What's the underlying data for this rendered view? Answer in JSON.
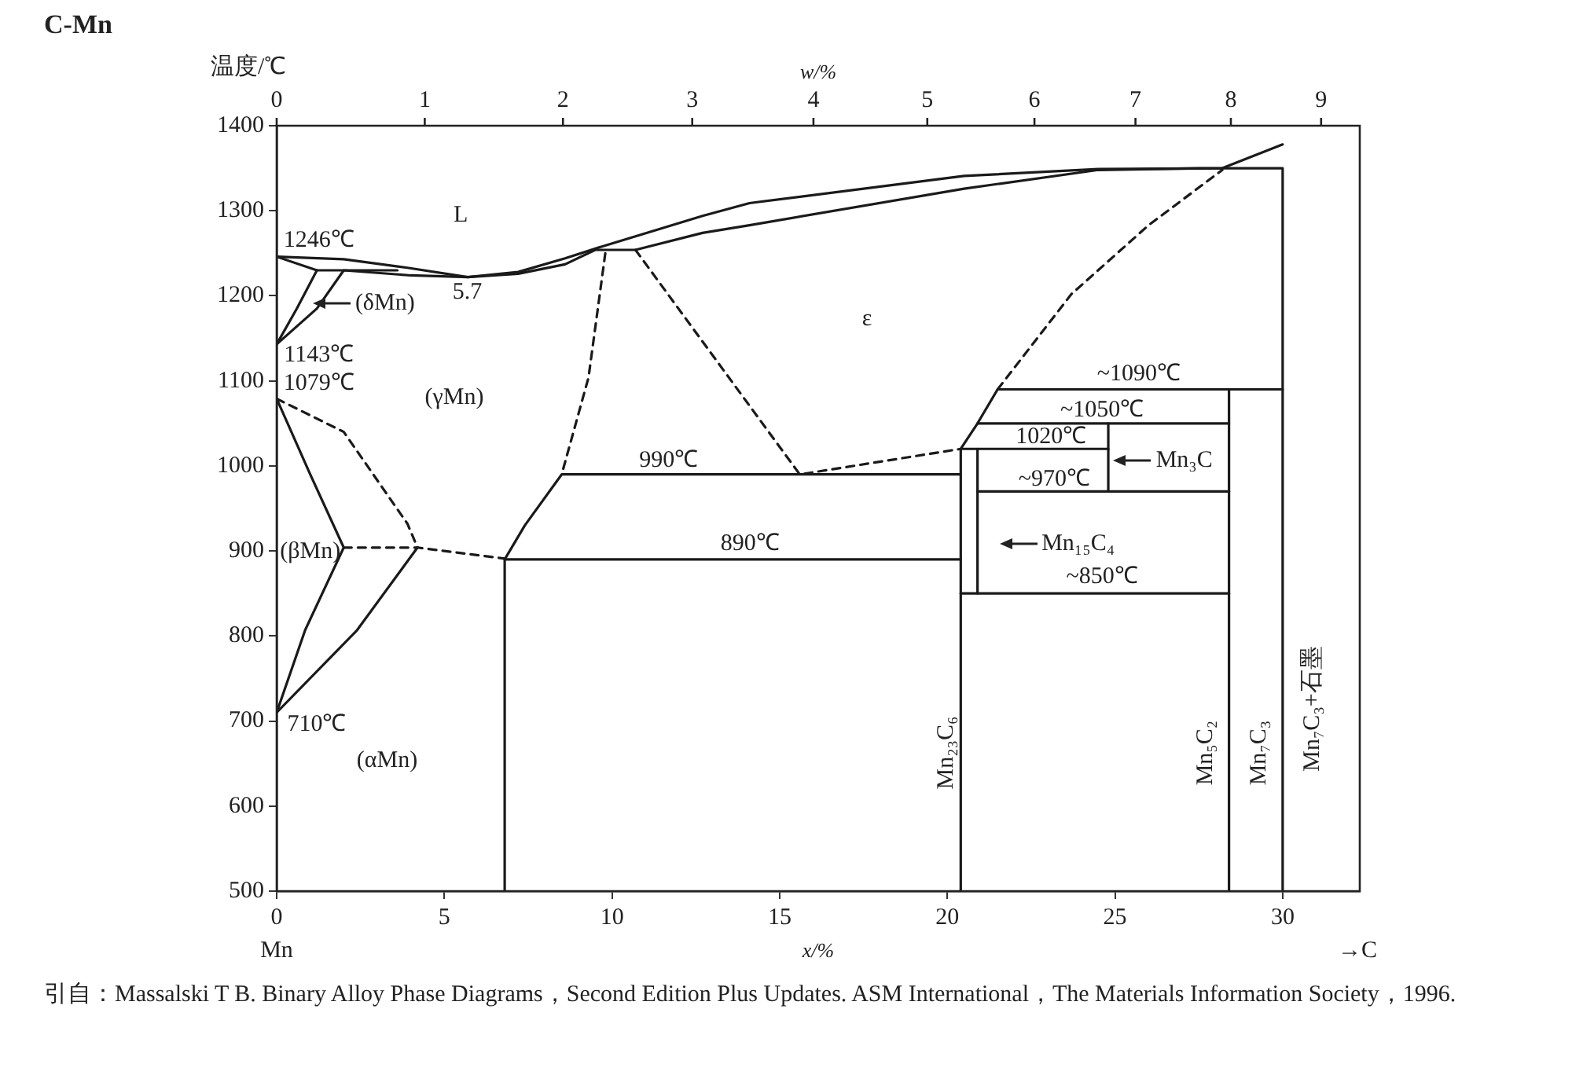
{
  "chart_data": {
    "type": "line",
    "title": "C-Mn",
    "ylabel": "温度/℃",
    "xlabel": "x/%",
    "x2label": "w/%",
    "xlim": [
      0,
      32.3
    ],
    "xticks": [
      0,
      5,
      10,
      15,
      20,
      25,
      30
    ],
    "ylim": [
      500,
      1400
    ],
    "yticks": [
      500,
      600,
      700,
      800,
      900,
      1000,
      1100,
      1200,
      1300,
      1400
    ],
    "marker": "none",
    "series": [
      {
        "color": "#1a1a1a",
        "line_style": "solid",
        "x": [
          0,
          2,
          3.9,
          5.7,
          7.2,
          8.6,
          9.7,
          12.7,
          14.1,
          20.5,
          24.5,
          28.2,
          30
        ],
        "values": [
          1246,
          1243,
          1233,
          1222,
          1228,
          1244,
          1258,
          1294,
          1309,
          1341,
          1349,
          1350,
          1378
        ]
      },
      {
        "color": "#1a1a1a",
        "line_style": "solid",
        "x": [
          0,
          1.2,
          3.6
        ],
        "values": [
          1246,
          1230,
          1230
        ]
      },
      {
        "color": "#1a1a1a",
        "line_style": "solid",
        "x": [
          0,
          1.2,
          2,
          4,
          5.7,
          7.2,
          8.6,
          9.5,
          10.7,
          12.7,
          14.1,
          20.5,
          24.5,
          27.6,
          30,
          30
        ],
        "values": [
          1143,
          1185,
          1230,
          1224,
          1222,
          1226,
          1237,
          1254,
          1254,
          1274,
          1283,
          1326,
          1348,
          1350,
          1350,
          500
        ]
      },
      {
        "color": "#1a1a1a",
        "line_style": "solid",
        "x": [
          0,
          0.6,
          1.2
        ],
        "values": [
          1143,
          1185,
          1230
        ]
      },
      {
        "color": "#1a1a1a",
        "line_style": "solid",
        "x": [
          0,
          1,
          2,
          0.85,
          0
        ],
        "values": [
          1079,
          990,
          904,
          807,
          710
        ]
      },
      {
        "color": "#1a1a1a",
        "line_style": "dashed",
        "x": [
          0,
          2,
          3.9,
          4.2
        ],
        "values": [
          1079,
          1040,
          932,
          904
        ]
      },
      {
        "color": "#1a1a1a",
        "line_style": "solid",
        "x": [
          0,
          2.4,
          4.2
        ],
        "values": [
          710,
          807,
          904
        ]
      },
      {
        "color": "#1a1a1a",
        "line_style": "dashed",
        "x": [
          2,
          4.2,
          6.8
        ],
        "values": [
          904,
          904,
          891
        ]
      },
      {
        "color": "#1a1a1a",
        "line_style": "solid",
        "x": [
          6.8,
          6.8,
          20.4
        ],
        "values": [
          500,
          890,
          890
        ]
      },
      {
        "color": "#1a1a1a",
        "line_style": "solid",
        "x": [
          6.8,
          7.4,
          8.5,
          20.4
        ],
        "values": [
          890,
          930,
          990,
          990
        ]
      },
      {
        "color": "#1a1a1a",
        "line_style": "dashed",
        "x": [
          9.8,
          9.3,
          8.5
        ],
        "values": [
          1250,
          1104,
          990
        ]
      },
      {
        "color": "#1a1a1a",
        "line_style": "dashed",
        "x": [
          10.7,
          15.6,
          20.4
        ],
        "values": [
          1254,
          990,
          1020
        ]
      },
      {
        "color": "#1a1a1a",
        "line_style": "solid",
        "x": [
          20.4,
          20.4,
          20.9,
          21.5,
          30
        ],
        "values": [
          500,
          1020,
          1050,
          1090,
          1090
        ]
      },
      {
        "color": "#1a1a1a",
        "line_style": "dashed",
        "x": [
          21.5,
          23.7,
          26,
          28.2
        ],
        "values": [
          1090,
          1202,
          1283,
          1348
        ]
      },
      {
        "color": "#1a1a1a",
        "line_style": "solid",
        "x": [
          20.9,
          28.4
        ],
        "values": [
          1050,
          1050
        ]
      },
      {
        "color": "#1a1a1a",
        "line_style": "solid",
        "x": [
          20.4,
          24.8
        ],
        "values": [
          1020,
          1020
        ]
      },
      {
        "color": "#1a1a1a",
        "line_style": "solid",
        "x": [
          24.8,
          24.8
        ],
        "values": [
          1050,
          970
        ]
      },
      {
        "color": "#1a1a1a",
        "line_style": "solid",
        "x": [
          20.9,
          28.4
        ],
        "values": [
          970,
          970
        ]
      },
      {
        "color": "#1a1a1a",
        "line_style": "solid",
        "x": [
          20.4,
          28.4
        ],
        "values": [
          850,
          850
        ]
      },
      {
        "color": "#1a1a1a",
        "line_style": "solid",
        "x": [
          20.9,
          20.9
        ],
        "values": [
          1020,
          850
        ]
      },
      {
        "color": "#1a1a1a",
        "line_style": "solid",
        "x": [
          28.4,
          28.4
        ],
        "values": [
          1090,
          500
        ]
      }
    ],
    "annotations": [
      "L",
      "1246℃",
      "(δMn)",
      "5.7",
      "1143℃",
      "1079℃",
      "(γMn)",
      "(βMn)",
      "710℃",
      "(αMn)",
      "990℃",
      "890℃",
      "ε",
      "~1090℃",
      "~1050℃",
      "1020℃",
      "~970℃",
      "Mn₃C",
      "Mn₁₅C₄",
      "~850℃",
      "Mn₂₃C₆",
      "Mn₅C₂",
      "Mn₇C₃",
      "Mn₇C₃+石墨",
      "0",
      "1",
      "2",
      "3",
      "4",
      "5",
      "6",
      "7",
      "8",
      "9",
      "Mn",
      "→C",
      "引自：Massalski T B. Binary Alloy Phase Diagrams，Second Edition Plus Updates. ASM International，The Materials Information Society，1996."
    ]
  }
}
